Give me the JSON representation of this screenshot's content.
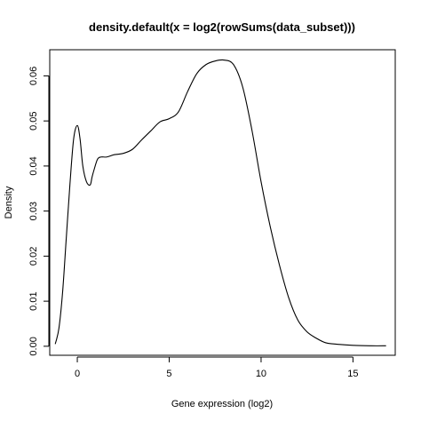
{
  "chart_data": {
    "type": "line",
    "title": "density.default(x = log2(rowSums(data_subset)))",
    "xlabel": "Gene expression (log2)",
    "ylabel": "Density",
    "xlim": [
      -1.5,
      17.3
    ],
    "ylim": [
      -0.002,
      0.0658
    ],
    "x_ticks": [
      0,
      5,
      10,
      15
    ],
    "x_tick_labels": [
      "0",
      "5",
      "10",
      "15"
    ],
    "y_ticks": [
      0.0,
      0.01,
      0.02,
      0.03,
      0.04,
      0.05,
      0.06
    ],
    "y_tick_labels": [
      "0.00",
      "0.01",
      "0.02",
      "0.03",
      "0.04",
      "0.05",
      "0.06"
    ],
    "grid": false,
    "legend": "none",
    "series": [
      {
        "x": [
          -1.2,
          -1.0,
          -0.8,
          -0.6,
          -0.4,
          -0.2,
          0.0,
          0.15,
          0.3,
          0.5,
          0.7,
          0.8,
          0.9,
          1.1,
          1.3,
          1.6,
          2.0,
          2.5,
          3.0,
          3.5,
          4.0,
          4.5,
          5.0,
          5.5,
          6.0,
          6.5,
          7.0,
          7.5,
          8.0,
          8.5,
          9.0,
          9.5,
          10.0,
          10.5,
          11.0,
          11.5,
          12.0,
          12.5,
          13.0,
          13.5,
          14.0,
          15.0,
          16.0,
          16.8
        ],
        "y": [
          0.0005,
          0.004,
          0.012,
          0.024,
          0.036,
          0.046,
          0.049,
          0.046,
          0.04,
          0.0365,
          0.0358,
          0.0375,
          0.039,
          0.0415,
          0.042,
          0.042,
          0.0425,
          0.0428,
          0.0437,
          0.0458,
          0.0478,
          0.0498,
          0.0505,
          0.052,
          0.0565,
          0.0605,
          0.0625,
          0.0633,
          0.0635,
          0.0625,
          0.0575,
          0.048,
          0.0365,
          0.0265,
          0.018,
          0.0108,
          0.0058,
          0.0032,
          0.0018,
          0.0008,
          0.0005,
          0.0002,
          0.0001,
          0.0001
        ]
      }
    ]
  }
}
